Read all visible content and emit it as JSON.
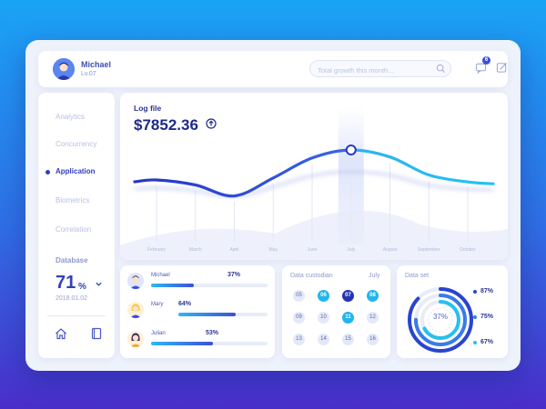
{
  "header": {
    "user_name": "Michael",
    "user_level": "Lv.07",
    "search_placeholder": "Total growth this month...",
    "notification_count": "6"
  },
  "sidebar": {
    "items": [
      {
        "label": "Analytics"
      },
      {
        "label": "Concurrency"
      },
      {
        "label": "Application"
      },
      {
        "label": "Biometrics"
      },
      {
        "label": "Correlation"
      }
    ],
    "active_item": "Application",
    "database": {
      "label": "Database",
      "value": "71",
      "unit": "%",
      "date": "2018.01.02"
    }
  },
  "log_chart": {
    "title": "Log file",
    "value": "$7852.36"
  },
  "chart_data": {
    "type": "line",
    "categories": [
      "February",
      "March",
      "April",
      "May",
      "June",
      "July",
      "August",
      "September",
      "October"
    ],
    "series": [
      {
        "values": [
          40,
          35,
          24,
          42,
          62,
          70,
          63,
          45,
          38
        ]
      }
    ],
    "highlight_category": "July",
    "ylim": [
      0,
      100
    ]
  },
  "people": [
    {
      "name": "Michael",
      "percent": "37%",
      "progress": 0.37
    },
    {
      "name": "Mary",
      "percent": "64%",
      "progress": 0.64
    },
    {
      "name": "Julian",
      "percent": "53%",
      "progress": 0.53
    }
  ],
  "calendar": {
    "title": "Data custodian",
    "month": "July",
    "days": [
      {
        "n": "05",
        "state": "normal"
      },
      {
        "n": "06",
        "state": "cyan"
      },
      {
        "n": "07",
        "state": "dark"
      },
      {
        "n": "08",
        "state": "cyan"
      },
      {
        "n": "09",
        "state": "normal"
      },
      {
        "n": "10",
        "state": "normal"
      },
      {
        "n": "11",
        "state": "cyan"
      },
      {
        "n": "12",
        "state": "normal"
      },
      {
        "n": "13",
        "state": "normal"
      },
      {
        "n": "14",
        "state": "normal"
      },
      {
        "n": "15",
        "state": "normal"
      },
      {
        "n": "16",
        "state": "normal"
      }
    ]
  },
  "dataset": {
    "title": "Data set",
    "center_label": "37%",
    "values": [
      "87%",
      "75%",
      "67%"
    ],
    "colors": [
      "#2a44d0",
      "#3a7be8",
      "#27c0ee"
    ]
  }
}
